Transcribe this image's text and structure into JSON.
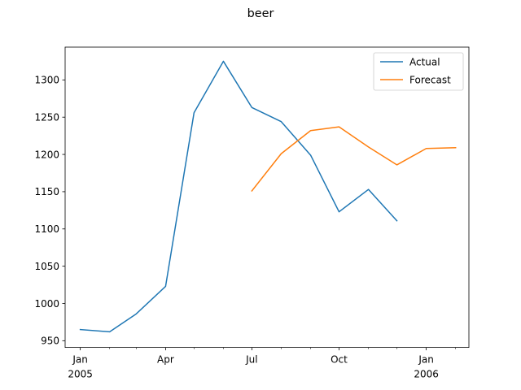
{
  "chart_data": {
    "type": "line",
    "title": "beer",
    "xlabel": "",
    "ylabel": "",
    "x_axis": {
      "type": "date",
      "range": [
        "2004-12-16",
        "2006-02-15"
      ],
      "ticks": [
        {
          "date": "2005-01-01",
          "label": "Jan",
          "sublabel": "2005"
        },
        {
          "date": "2005-04-01",
          "label": "Apr",
          "sublabel": ""
        },
        {
          "date": "2005-07-01",
          "label": "Jul",
          "sublabel": ""
        },
        {
          "date": "2005-10-01",
          "label": "Oct",
          "sublabel": ""
        },
        {
          "date": "2006-01-01",
          "label": "Jan",
          "sublabel": "2006"
        }
      ],
      "minor_ticks": [
        "2005-02-01",
        "2005-03-01",
        "2005-05-01",
        "2005-06-01",
        "2005-08-01",
        "2005-09-01",
        "2005-11-01",
        "2005-12-01",
        "2006-02-01"
      ]
    },
    "y_axis": {
      "range": [
        941,
        1344
      ],
      "ticks": [
        950,
        1000,
        1050,
        1100,
        1150,
        1200,
        1250,
        1300
      ]
    },
    "grid": false,
    "legend": "top-right",
    "series": [
      {
        "name": "Actual",
        "color": "#1f77b4",
        "points": [
          {
            "x": "2005-01-01",
            "y": 965
          },
          {
            "x": "2005-02-01",
            "y": 962
          },
          {
            "x": "2005-03-01",
            "y": 986
          },
          {
            "x": "2005-04-01",
            "y": 1023
          },
          {
            "x": "2005-05-01",
            "y": 1256
          },
          {
            "x": "2005-06-01",
            "y": 1325
          },
          {
            "x": "2005-07-01",
            "y": 1263
          },
          {
            "x": "2005-08-01",
            "y": 1244
          },
          {
            "x": "2005-09-01",
            "y": 1199
          },
          {
            "x": "2005-10-01",
            "y": 1123
          },
          {
            "x": "2005-11-01",
            "y": 1153
          },
          {
            "x": "2005-12-01",
            "y": 1111
          }
        ]
      },
      {
        "name": "Forecast",
        "color": "#ff7f0e",
        "points": [
          {
            "x": "2005-07-01",
            "y": 1151
          },
          {
            "x": "2005-08-01",
            "y": 1201
          },
          {
            "x": "2005-09-01",
            "y": 1232
          },
          {
            "x": "2005-10-01",
            "y": 1237
          },
          {
            "x": "2005-11-01",
            "y": 1210
          },
          {
            "x": "2005-12-01",
            "y": 1186
          },
          {
            "x": "2006-01-01",
            "y": 1208
          },
          {
            "x": "2006-02-01",
            "y": 1209
          }
        ]
      }
    ]
  }
}
